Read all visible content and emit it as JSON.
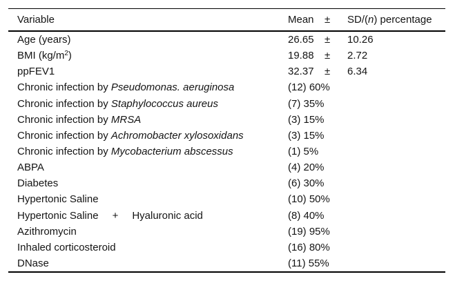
{
  "table": {
    "header": {
      "variable": "Variable",
      "mean": "Mean",
      "pm": "±",
      "sd_parts": [
        {
          "text": "SD/(",
          "style": "normal"
        },
        {
          "text": "n",
          "style": "italic"
        },
        {
          "text": ") percentage",
          "style": "normal"
        }
      ]
    },
    "rows": [
      {
        "label_parts": [
          {
            "text": "Age (years)",
            "style": "normal"
          }
        ],
        "mean": "26.65",
        "pm": "±",
        "sd": "10.26"
      },
      {
        "label_parts": [
          {
            "text": "BMI (kg/m",
            "style": "normal"
          },
          {
            "text": "2",
            "style": "sup"
          },
          {
            "text": ")",
            "style": "normal"
          }
        ],
        "mean": "19.88",
        "pm": "±",
        "sd": "2.72"
      },
      {
        "label_parts": [
          {
            "text": "ppFEV1",
            "style": "normal"
          }
        ],
        "mean": "32.37",
        "pm": "±",
        "sd": "6.34"
      },
      {
        "label_parts": [
          {
            "text": "Chronic infection by ",
            "style": "normal"
          },
          {
            "text": "Pseudomonas. aeruginosa",
            "style": "italic"
          }
        ],
        "value": "(12) 60%"
      },
      {
        "label_parts": [
          {
            "text": "Chronic infection by ",
            "style": "normal"
          },
          {
            "text": "Staphylococcus aureus",
            "style": "italic"
          }
        ],
        "value": "(7) 35%"
      },
      {
        "label_parts": [
          {
            "text": "Chronic infection by ",
            "style": "normal"
          },
          {
            "text": "MRSA",
            "style": "italic"
          }
        ],
        "value": "(3) 15%"
      },
      {
        "label_parts": [
          {
            "text": "Chronic infection by ",
            "style": "normal"
          },
          {
            "text": "Achromobacter xylosoxidans",
            "style": "italic"
          }
        ],
        "value": "(3) 15%"
      },
      {
        "label_parts": [
          {
            "text": "Chronic infection by ",
            "style": "normal"
          },
          {
            "text": "Mycobacterium abscessus",
            "style": "italic"
          }
        ],
        "value": "(1) 5%"
      },
      {
        "label_parts": [
          {
            "text": "ABPA",
            "style": "normal"
          }
        ],
        "value": "(4) 20%"
      },
      {
        "label_parts": [
          {
            "text": "Diabetes",
            "style": "normal"
          }
        ],
        "value": "(6) 30%"
      },
      {
        "label_parts": [
          {
            "text": "Hypertonic Saline",
            "style": "normal"
          }
        ],
        "value": "(10) 50%"
      },
      {
        "label_parts": [
          {
            "text": "Hypertonic Saline",
            "style": "normal"
          },
          {
            "text": "+",
            "style": "spaced"
          },
          {
            "text": "Hyaluronic acid",
            "style": "normal"
          }
        ],
        "value": "(8) 40%"
      },
      {
        "label_parts": [
          {
            "text": "Azithromycin",
            "style": "normal"
          }
        ],
        "value": "(19) 95%"
      },
      {
        "label_parts": [
          {
            "text": "Inhaled corticosteroid",
            "style": "normal"
          }
        ],
        "value": "(16) 80%"
      },
      {
        "label_parts": [
          {
            "text": "DNase",
            "style": "normal"
          }
        ],
        "value": "(11) 55%"
      }
    ]
  }
}
